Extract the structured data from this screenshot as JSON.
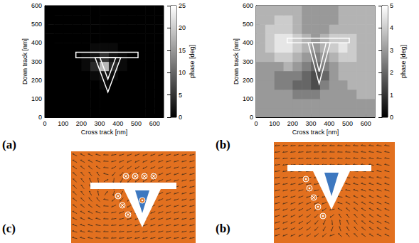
{
  "chart_data": [
    {
      "type": "heatmap",
      "panel_label": "(a)",
      "xlabel": "Cross track [nm]",
      "ylabel": "Down track [nm]",
      "xlim": [
        0,
        650
      ],
      "ylim": [
        0,
        600
      ],
      "xticks": [
        0,
        100,
        200,
        300,
        400,
        500,
        600
      ],
      "yticks": [
        0,
        100,
        200,
        300,
        400,
        500,
        600
      ],
      "x": [
        25,
        75,
        125,
        175,
        225,
        275,
        325,
        375,
        425,
        475,
        525,
        575,
        625
      ],
      "y": [
        25,
        75,
        125,
        175,
        225,
        275,
        325,
        375,
        425,
        475,
        525,
        575
      ],
      "cells": [
        [
          0,
          0,
          0,
          0,
          0,
          0,
          0,
          0,
          0,
          0,
          0,
          0,
          0
        ],
        [
          0,
          0,
          0,
          0,
          0,
          0,
          0,
          0,
          0,
          0,
          0,
          0,
          0
        ],
        [
          0,
          0,
          0,
          0,
          0,
          0,
          0,
          0,
          0,
          0,
          0,
          0,
          0
        ],
        [
          0,
          0,
          0,
          0,
          0,
          0,
          1,
          0,
          0,
          0,
          0,
          0,
          0
        ],
        [
          0,
          0,
          0,
          0,
          0,
          1,
          2,
          1,
          0,
          0,
          0,
          0,
          0
        ],
        [
          0,
          0,
          0,
          0,
          1,
          4,
          18,
          4,
          1,
          0,
          0,
          0,
          0
        ],
        [
          0,
          0,
          0,
          0,
          1,
          2,
          5,
          2,
          1,
          0,
          0,
          0,
          0
        ],
        [
          0,
          0,
          0,
          0,
          0,
          1,
          1,
          1,
          0,
          0,
          0,
          0,
          0
        ],
        [
          0,
          0,
          0,
          0,
          0,
          0,
          0,
          0,
          0,
          0,
          0,
          0,
          0
        ],
        [
          0,
          0,
          0,
          0,
          0,
          0,
          0,
          0,
          0,
          0,
          0,
          0,
          0
        ],
        [
          0,
          0,
          0,
          0,
          0,
          0,
          0,
          0,
          0,
          0,
          0,
          0,
          0
        ],
        [
          0,
          0,
          0,
          0,
          0,
          0,
          0,
          0,
          0,
          0,
          0,
          0,
          0
        ]
      ],
      "colorbar": {
        "label": "phase [deg]",
        "range": [
          0,
          25
        ],
        "ticks": [
          0,
          5,
          10,
          15,
          20,
          25
        ]
      }
    },
    {
      "type": "heatmap",
      "panel_label": "(b)",
      "xlabel": "Cross track [nm]",
      "ylabel": "Down track [nm]",
      "xlim": [
        0,
        650
      ],
      "ylim": [
        0,
        600
      ],
      "xticks": [
        0,
        100,
        200,
        300,
        400,
        500,
        600
      ],
      "yticks": [
        0,
        100,
        200,
        300,
        400,
        500,
        600
      ],
      "x": [
        25,
        75,
        125,
        175,
        225,
        275,
        325,
        375,
        425,
        475,
        525,
        575,
        625
      ],
      "y": [
        25,
        75,
        125,
        175,
        225,
        275,
        325,
        375,
        425,
        475,
        525,
        575
      ],
      "cells": [
        [
          3,
          3,
          3,
          3,
          3,
          3,
          3,
          3,
          3,
          3,
          3,
          3,
          3
        ],
        [
          3,
          3,
          3,
          3,
          3,
          3,
          3,
          3,
          3,
          3,
          3,
          3,
          3
        ],
        [
          3,
          3,
          3,
          3,
          2.5,
          2.5,
          2.5,
          3,
          3,
          3,
          3,
          3.5,
          3.5
        ],
        [
          3,
          3,
          2.5,
          2.5,
          2,
          2,
          1.5,
          2.5,
          3,
          3,
          3.5,
          3.5,
          3.5
        ],
        [
          3,
          3,
          2.5,
          2.5,
          2.5,
          2,
          1.5,
          2,
          3,
          3.5,
          3.5,
          3.5,
          3.5
        ],
        [
          3,
          3,
          3,
          3.5,
          3,
          2.5,
          2,
          2.5,
          3,
          3.5,
          3.5,
          3.5,
          3.5
        ],
        [
          3.5,
          3.5,
          4,
          4,
          3.5,
          3,
          2.5,
          3,
          3.5,
          4,
          4,
          3.5,
          3.5
        ],
        [
          3.5,
          4,
          4.5,
          4.5,
          4,
          3.5,
          3,
          3.5,
          4,
          4.5,
          4,
          3.5,
          3.5
        ],
        [
          3.5,
          4,
          4.5,
          4.5,
          4,
          3.5,
          3,
          3.5,
          4,
          4,
          4,
          3.5,
          3.5
        ],
        [
          3.5,
          4,
          4,
          4,
          3.5,
          3,
          3,
          3,
          3.5,
          3.5,
          3.5,
          3.5,
          3.5
        ],
        [
          3.5,
          3.5,
          4,
          4,
          3.5,
          3,
          3,
          3,
          3,
          3.5,
          3.5,
          3.5,
          3.5
        ],
        [
          3.5,
          3.5,
          3.5,
          3.5,
          3.5,
          3,
          3,
          3,
          3,
          3.5,
          3.5,
          3.5,
          3.5
        ]
      ],
      "colorbar": {
        "label": "phase [deg]",
        "range": [
          0,
          5
        ],
        "ticks": [
          0,
          1,
          2,
          3,
          4,
          5
        ]
      }
    }
  ],
  "diagrams": [
    {
      "label": "(c)"
    },
    {
      "label": "(b)"
    }
  ]
}
